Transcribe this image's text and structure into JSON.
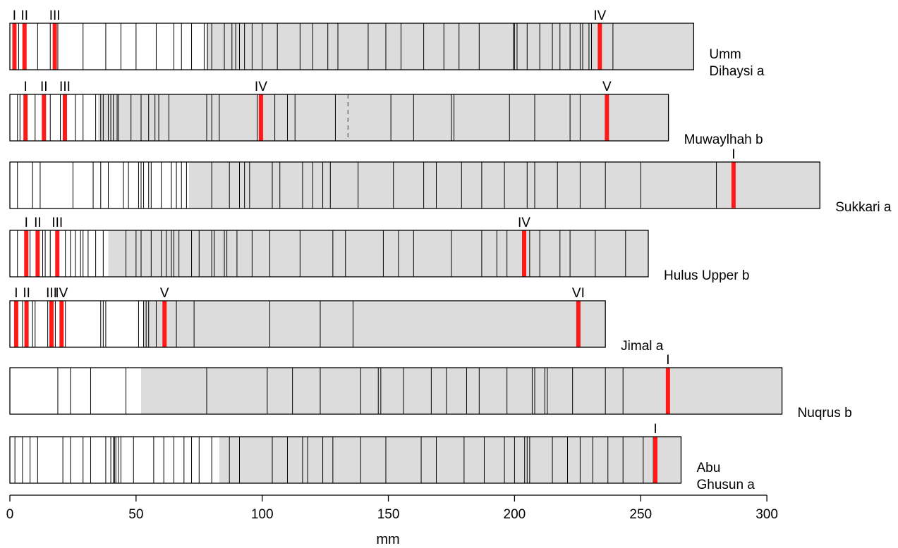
{
  "chart_data": {
    "type": "other",
    "description_of_marks": "banded strips",
    "xlabel": "mm",
    "xlim": [
      0,
      310
    ],
    "xticks": [
      0,
      50,
      100,
      150,
      200,
      250,
      300
    ],
    "colors": {
      "shaded": "#dcdcdc",
      "marker": "#ff1a1a",
      "line": "#000000"
    },
    "rows": [
      {
        "name": "Umm\nDihaysi a",
        "length": 271,
        "shaded_start": 78,
        "lines": [
          3.5,
          11,
          16,
          18,
          19,
          29,
          38,
          44,
          50,
          58,
          65,
          68,
          72,
          77,
          78.3,
          80,
          85,
          88,
          89.5,
          91,
          93,
          96,
          100,
          106,
          115,
          120,
          126,
          130,
          142,
          149,
          155,
          164,
          172,
          178,
          186,
          199.5,
          200,
          201,
          205,
          210,
          215,
          218,
          222,
          226,
          227,
          229.5,
          230.5,
          239
        ],
        "markers": [
          {
            "x": 1.8,
            "label": "I"
          },
          {
            "x": 5.8,
            "label": "II"
          },
          {
            "x": 17.8,
            "label": "III"
          },
          {
            "x": 233.8,
            "label": "IV"
          }
        ]
      },
      {
        "name": "Muwaylhah b",
        "length": 261,
        "shaded_start": 35,
        "lines": [
          3,
          4,
          10,
          16,
          20,
          26,
          29,
          34,
          36,
          37,
          39,
          40,
          41,
          42.5,
          43,
          48,
          52,
          55,
          57.5,
          59,
          63,
          78,
          80,
          83,
          98,
          105,
          110,
          113,
          129,
          151,
          160,
          175,
          176,
          198,
          208,
          222,
          226
        ],
        "dashed": [
          134
        ],
        "markers": [
          {
            "x": 6.2,
            "label": "I"
          },
          {
            "x": 13.5,
            "label": "II"
          },
          {
            "x": 21.8,
            "label": "III"
          },
          {
            "x": 99.5,
            "label": "IV"
          },
          {
            "x": 236.6,
            "label": "V"
          }
        ]
      },
      {
        "name": "Sukkari a",
        "length": 321,
        "shaded_start": 71,
        "lines": [
          3,
          9,
          12,
          25,
          33,
          36,
          39,
          45,
          47,
          51,
          52,
          53,
          55,
          56,
          60,
          64,
          66,
          68,
          70,
          80,
          87,
          91,
          93,
          95,
          104,
          107,
          116,
          120,
          124,
          127,
          138,
          152,
          164,
          169,
          179,
          187,
          196,
          205,
          208,
          217,
          226,
          236,
          250,
          280
        ],
        "markers": [
          {
            "x": 286.8,
            "label": "I"
          }
        ]
      },
      {
        "name": "Hulus Upper b",
        "length": 253,
        "shaded_start": 39,
        "lines": [
          3,
          7,
          8,
          13,
          14,
          16,
          22,
          24,
          26,
          28,
          29,
          31,
          34,
          37,
          46,
          50,
          52,
          56,
          60,
          62,
          64,
          65,
          67,
          72,
          75,
          80,
          81,
          85,
          86,
          90,
          96,
          103,
          115,
          128,
          133,
          148,
          154,
          160,
          175,
          187,
          193,
          197,
          206,
          210,
          218,
          222,
          232,
          244
        ],
        "markers": [
          {
            "x": 6.5,
            "label": "I"
          },
          {
            "x": 11,
            "label": "II"
          },
          {
            "x": 18.8,
            "label": "III"
          },
          {
            "x": 203.8,
            "label": "IV"
          }
        ]
      },
      {
        "name": "Jimal a",
        "length": 236,
        "shaded_start": 53,
        "lines": [
          5,
          9,
          10,
          15,
          18,
          20,
          22,
          36,
          37,
          38,
          51,
          53,
          54,
          55,
          58,
          66,
          73,
          103,
          123,
          136
        ],
        "markers": [
          {
            "x": 2.5,
            "label": "I"
          },
          {
            "x": 6.6,
            "label": "II"
          },
          {
            "x": 16.5,
            "label": "III"
          },
          {
            "x": 20.5,
            "label": "IV"
          },
          {
            "x": 61.3,
            "label": "V"
          },
          {
            "x": 225.3,
            "label": "VI"
          }
        ]
      },
      {
        "name": "Nuqrus b",
        "length": 306,
        "shaded_start": 52,
        "lines": [
          19,
          24,
          32,
          46,
          78,
          102,
          112,
          123,
          139,
          146,
          147,
          156,
          167,
          173,
          181,
          186,
          197,
          207,
          208,
          212,
          213,
          223,
          236,
          243
        ],
        "markers": [
          {
            "x": 260.8,
            "label": "I"
          }
        ]
      },
      {
        "name": "Abu\nGhusun a",
        "length": 266,
        "shaded_start": 83,
        "lines": [
          2,
          5,
          8,
          11,
          21,
          24,
          29,
          32,
          38,
          40,
          41,
          41.5,
          42,
          43,
          44,
          49,
          57,
          61,
          65,
          69,
          72,
          75,
          80,
          87,
          91,
          104,
          110,
          116,
          118,
          124,
          128,
          139,
          149,
          163,
          169,
          180,
          188,
          196,
          200,
          204,
          205,
          206,
          215,
          221,
          226,
          231,
          237,
          243,
          251,
          255
        ],
        "markers": [
          {
            "x": 255.8,
            "label": "I"
          }
        ]
      }
    ]
  }
}
